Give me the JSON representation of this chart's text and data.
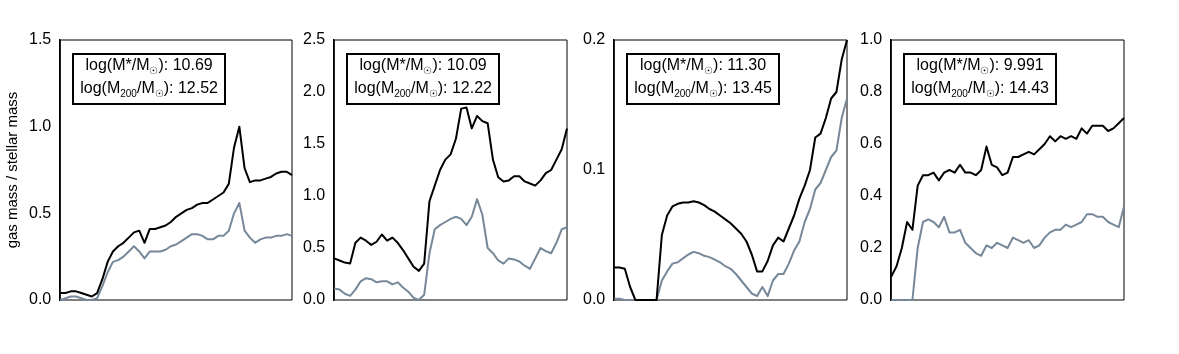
{
  "chart_data": [
    {
      "type": "line",
      "ylabel": "gas mass / stellar mass",
      "annotations": [
        "log(M*/M$_{☉}$): 10.69",
        "log(M$_{200}$/M$_{☉}$): 12.52"
      ],
      "categories": [
        null,
        null,
        null,
        null,
        null,
        null,
        null,
        null,
        null,
        null,
        null,
        null,
        null,
        null,
        null,
        null,
        null,
        null,
        null,
        null,
        null,
        null,
        null,
        null,
        null,
        null,
        null,
        null,
        null,
        null,
        null,
        null,
        null,
        null,
        null,
        null,
        null,
        null,
        null,
        null,
        null,
        null,
        null,
        null,
        null
      ],
      "ylim": [
        0,
        1.5
      ],
      "yticks": [
        {
          "value": 0,
          "label": "0.0"
        },
        {
          "value": 0.5,
          "label": "0.5"
        },
        {
          "value": 1,
          "label": "1.0"
        },
        {
          "value": 1.5,
          "label": "1.5"
        }
      ],
      "tick_labels": "y",
      "grid": false,
      "legend": false,
      "marker": "none",
      "series": [
        {
          "color": "#000000",
          "values": [
            0.04,
            0.04,
            0.05,
            0.05,
            0.04,
            0.03,
            0.02,
            0.04,
            0.12,
            0.22,
            0.28,
            0.31,
            0.33,
            0.36,
            0.39,
            0.4,
            0.33,
            0.41,
            0.41,
            0.42,
            0.43,
            0.45,
            0.48,
            0.5,
            0.52,
            0.53,
            0.55,
            0.56,
            0.56,
            0.58,
            0.6,
            0.62,
            0.67,
            0.88,
            1.0,
            0.76,
            0.68,
            0.69,
            0.69,
            0.7,
            0.71,
            0.73,
            0.74,
            0.74,
            0.72
          ]
        },
        {
          "color": "#778899",
          "values": [
            0.0,
            0.01,
            0.02,
            0.02,
            0.01,
            0.0,
            0.0,
            0.01,
            0.08,
            0.16,
            0.22,
            0.23,
            0.25,
            0.28,
            0.31,
            0.28,
            0.24,
            0.28,
            0.28,
            0.28,
            0.29,
            0.31,
            0.32,
            0.34,
            0.36,
            0.38,
            0.38,
            0.37,
            0.35,
            0.35,
            0.37,
            0.37,
            0.4,
            0.5,
            0.56,
            0.4,
            0.36,
            0.33,
            0.35,
            0.36,
            0.36,
            0.37,
            0.37,
            0.38,
            0.37
          ]
        }
      ]
    },
    {
      "type": "line",
      "annotations": [
        "log(M*/M$_{☉}$): 10.09",
        "log(M$_{200}$/M$_{☉}$): 12.22"
      ],
      "categories": [
        null,
        null,
        null,
        null,
        null,
        null,
        null,
        null,
        null,
        null,
        null,
        null,
        null,
        null,
        null,
        null,
        null,
        null,
        null,
        null,
        null,
        null,
        null,
        null,
        null,
        null,
        null,
        null,
        null,
        null,
        null,
        null,
        null,
        null,
        null,
        null,
        null,
        null,
        null,
        null,
        null,
        null,
        null,
        null,
        null
      ],
      "ylim": [
        0,
        2.5
      ],
      "yticks": [
        {
          "value": 0,
          "label": "0.0"
        },
        {
          "value": 0.5,
          "label": "0.5"
        },
        {
          "value": 1,
          "label": "1.0"
        },
        {
          "value": 1.5,
          "label": "1.5"
        },
        {
          "value": 2,
          "label": "2.0"
        },
        {
          "value": 2.5,
          "label": "2.5"
        }
      ],
      "tick_labels": "y",
      "grid": false,
      "legend": false,
      "marker": "none",
      "series": [
        {
          "color": "#000000",
          "values": [
            0.4,
            0.38,
            0.36,
            0.35,
            0.55,
            0.6,
            0.57,
            0.53,
            0.56,
            0.63,
            0.57,
            0.6,
            0.55,
            0.48,
            0.4,
            0.32,
            0.28,
            0.35,
            0.95,
            1.1,
            1.25,
            1.35,
            1.4,
            1.55,
            1.84,
            1.85,
            1.65,
            1.77,
            1.72,
            1.7,
            1.35,
            1.18,
            1.14,
            1.15,
            1.19,
            1.19,
            1.14,
            1.12,
            1.1,
            1.15,
            1.22,
            1.25,
            1.35,
            1.45,
            1.65
          ]
        },
        {
          "color": "#778899",
          "values": [
            0.11,
            0.1,
            0.06,
            0.04,
            0.1,
            0.18,
            0.21,
            0.2,
            0.17,
            0.18,
            0.18,
            0.15,
            0.17,
            0.12,
            0.08,
            0.02,
            0.0,
            0.05,
            0.45,
            0.68,
            0.72,
            0.75,
            0.78,
            0.8,
            0.78,
            0.72,
            0.8,
            0.97,
            0.82,
            0.5,
            0.45,
            0.38,
            0.35,
            0.4,
            0.39,
            0.37,
            0.33,
            0.3,
            0.4,
            0.5,
            0.47,
            0.45,
            0.55,
            0.68,
            0.7
          ]
        }
      ]
    },
    {
      "type": "line",
      "annotations": [
        "log(M*/M$_{☉}$): 11.30",
        "log(M$_{200}$/M$_{☉}$): 13.45"
      ],
      "categories": [
        null,
        null,
        null,
        null,
        null,
        null,
        null,
        null,
        null,
        null,
        null,
        null,
        null,
        null,
        null,
        null,
        null,
        null,
        null,
        null,
        null,
        null,
        null,
        null,
        null,
        null,
        null,
        null,
        null,
        null,
        null,
        null,
        null,
        null,
        null,
        null,
        null,
        null,
        null,
        null,
        null,
        null,
        null,
        null,
        null
      ],
      "ylim": [
        0,
        0.2
      ],
      "yticks": [
        {
          "value": 0,
          "label": "0.0"
        },
        {
          "value": 0.1,
          "label": "0.1"
        },
        {
          "value": 0.2,
          "label": "0.2"
        }
      ],
      "tick_labels": "y",
      "grid": false,
      "legend": false,
      "marker": "none",
      "series": [
        {
          "color": "#000000",
          "values": [
            0.025,
            0.025,
            0.024,
            0.01,
            0.0,
            0.0,
            0.0,
            0.0,
            0.0,
            0.05,
            0.065,
            0.072,
            0.074,
            0.075,
            0.075,
            0.076,
            0.075,
            0.073,
            0.07,
            0.068,
            0.065,
            0.062,
            0.059,
            0.055,
            0.051,
            0.045,
            0.035,
            0.022,
            0.022,
            0.03,
            0.042,
            0.048,
            0.045,
            0.055,
            0.065,
            0.078,
            0.088,
            0.1,
            0.125,
            0.128,
            0.14,
            0.155,
            0.16,
            0.185,
            0.2
          ]
        },
        {
          "color": "#778899",
          "values": [
            0.001,
            0.001,
            0.0,
            0.0,
            0.0,
            0.0,
            0.0,
            0.0,
            0.0,
            0.015,
            0.022,
            0.028,
            0.029,
            0.032,
            0.035,
            0.037,
            0.036,
            0.034,
            0.033,
            0.031,
            0.029,
            0.026,
            0.024,
            0.02,
            0.015,
            0.01,
            0.005,
            0.003,
            0.01,
            0.003,
            0.015,
            0.02,
            0.02,
            0.028,
            0.038,
            0.045,
            0.06,
            0.07,
            0.085,
            0.09,
            0.1,
            0.11,
            0.115,
            0.14,
            0.155
          ]
        }
      ]
    },
    {
      "type": "line",
      "annotations": [
        "log(M*/M$_{☉}$): 9.991",
        "log(M$_{200}$/M$_{☉}$): 14.43"
      ],
      "categories": [
        null,
        null,
        null,
        null,
        null,
        null,
        null,
        null,
        null,
        null,
        null,
        null,
        null,
        null,
        null,
        null,
        null,
        null,
        null,
        null,
        null,
        null,
        null,
        null,
        null,
        null,
        null,
        null,
        null,
        null,
        null,
        null,
        null,
        null,
        null,
        null,
        null,
        null,
        null,
        null,
        null,
        null,
        null,
        null,
        null
      ],
      "ylim": [
        0,
        1.0
      ],
      "yticks": [
        {
          "value": 0,
          "label": "0.0"
        },
        {
          "value": 0.2,
          "label": "0.2"
        },
        {
          "value": 0.4,
          "label": "0.4"
        },
        {
          "value": 0.6,
          "label": "0.6"
        },
        {
          "value": 0.8,
          "label": "0.8"
        },
        {
          "value": 1,
          "label": "1.0"
        }
      ],
      "tick_labels": "y",
      "grid": false,
      "legend": false,
      "marker": "none",
      "series": [
        {
          "color": "#000000",
          "values": [
            0.09,
            0.13,
            0.2,
            0.3,
            0.27,
            0.44,
            0.48,
            0.48,
            0.49,
            0.46,
            0.49,
            0.5,
            0.49,
            0.52,
            0.49,
            0.49,
            0.48,
            0.5,
            0.59,
            0.52,
            0.51,
            0.48,
            0.49,
            0.55,
            0.55,
            0.56,
            0.57,
            0.56,
            0.58,
            0.6,
            0.63,
            0.61,
            0.63,
            0.62,
            0.63,
            0.62,
            0.66,
            0.64,
            0.67,
            0.67,
            0.67,
            0.65,
            0.66,
            0.68,
            0.7
          ]
        },
        {
          "color": "#778899",
          "values": [
            0.0,
            0.0,
            0.0,
            0.0,
            0.0,
            0.2,
            0.3,
            0.31,
            0.3,
            0.28,
            0.32,
            0.26,
            0.26,
            0.27,
            0.22,
            0.2,
            0.18,
            0.17,
            0.21,
            0.2,
            0.22,
            0.21,
            0.2,
            0.24,
            0.23,
            0.22,
            0.23,
            0.2,
            0.21,
            0.24,
            0.26,
            0.27,
            0.27,
            0.29,
            0.28,
            0.29,
            0.3,
            0.33,
            0.33,
            0.32,
            0.32,
            0.3,
            0.29,
            0.28,
            0.36
          ]
        }
      ]
    }
  ]
}
